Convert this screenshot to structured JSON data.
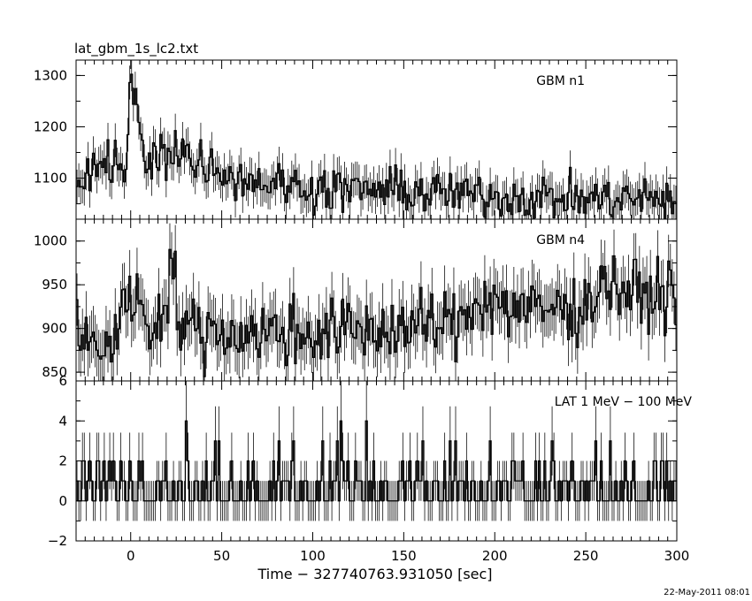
{
  "chart_data": {
    "type": "line",
    "title": "lat_gbm_1s_lc2.txt",
    "xlabel": "Time − 327740763.931050 [sec]",
    "timestamp": "22-May-2011 08:01",
    "xlim": [
      -30,
      300
    ],
    "x_ticks": [
      0,
      50,
      100,
      150,
      200,
      250,
      300
    ],
    "x_tick_labels": [
      "0",
      "50",
      "100",
      "150",
      "200",
      "250",
      "300"
    ],
    "grid": false,
    "panels": [
      {
        "name": "GBM n1",
        "label": "GBM n1",
        "ylim": [
          1020,
          1330
        ],
        "y_ticks": [
          1100,
          1200,
          1300
        ],
        "y_tick_labels": [
          "1100",
          "1200",
          "1300"
        ],
        "error": 33,
        "anchors": [
          [
            -30,
            1085
          ],
          [
            -20,
            1130
          ],
          [
            -10,
            1140
          ],
          [
            -2,
            1110
          ],
          [
            0,
            1295
          ],
          [
            3,
            1250
          ],
          [
            6,
            1150
          ],
          [
            15,
            1145
          ],
          [
            25,
            1150
          ],
          [
            40,
            1130
          ],
          [
            60,
            1100
          ],
          [
            100,
            1080
          ],
          [
            150,
            1075
          ],
          [
            200,
            1065
          ],
          [
            250,
            1060
          ],
          [
            300,
            1060
          ]
        ]
      },
      {
        "name": "GBM n4",
        "label": "GBM n4",
        "ylim": [
          840,
          1025
        ],
        "y_ticks": [
          850,
          900,
          950,
          1000
        ],
        "y_tick_labels": [
          "850",
          "900",
          "950",
          "1000"
        ],
        "error": 30,
        "anchors": [
          [
            -30,
            885
          ],
          [
            -10,
            880
          ],
          [
            0,
            950
          ],
          [
            5,
            930
          ],
          [
            10,
            890
          ],
          [
            20,
            940
          ],
          [
            22,
            980
          ],
          [
            28,
            900
          ],
          [
            60,
            895
          ],
          [
            100,
            895
          ],
          [
            150,
            900
          ],
          [
            180,
            905
          ],
          [
            190,
            935
          ],
          [
            220,
            920
          ],
          [
            250,
            925
          ],
          [
            260,
            955
          ],
          [
            280,
            935
          ],
          [
            300,
            945
          ]
        ]
      },
      {
        "name": "LAT 1 MeV - 100 MeV",
        "label": "LAT 1 MeV − 100 MeV",
        "ylim": [
          -2,
          6
        ],
        "y_ticks": [
          -2,
          0,
          2,
          4,
          6
        ],
        "y_tick_labels": [
          "−2",
          "0",
          "2",
          "4",
          "6"
        ],
        "error": 1,
        "counts": true,
        "anchors": [
          [
            -30,
            0.7
          ],
          [
            300,
            0.7
          ]
        ],
        "spikes": [
          [
            115,
            4
          ],
          [
            116,
            2
          ],
          [
            46,
            3
          ],
          [
            48,
            3
          ],
          [
            -15,
            2
          ]
        ]
      }
    ]
  }
}
